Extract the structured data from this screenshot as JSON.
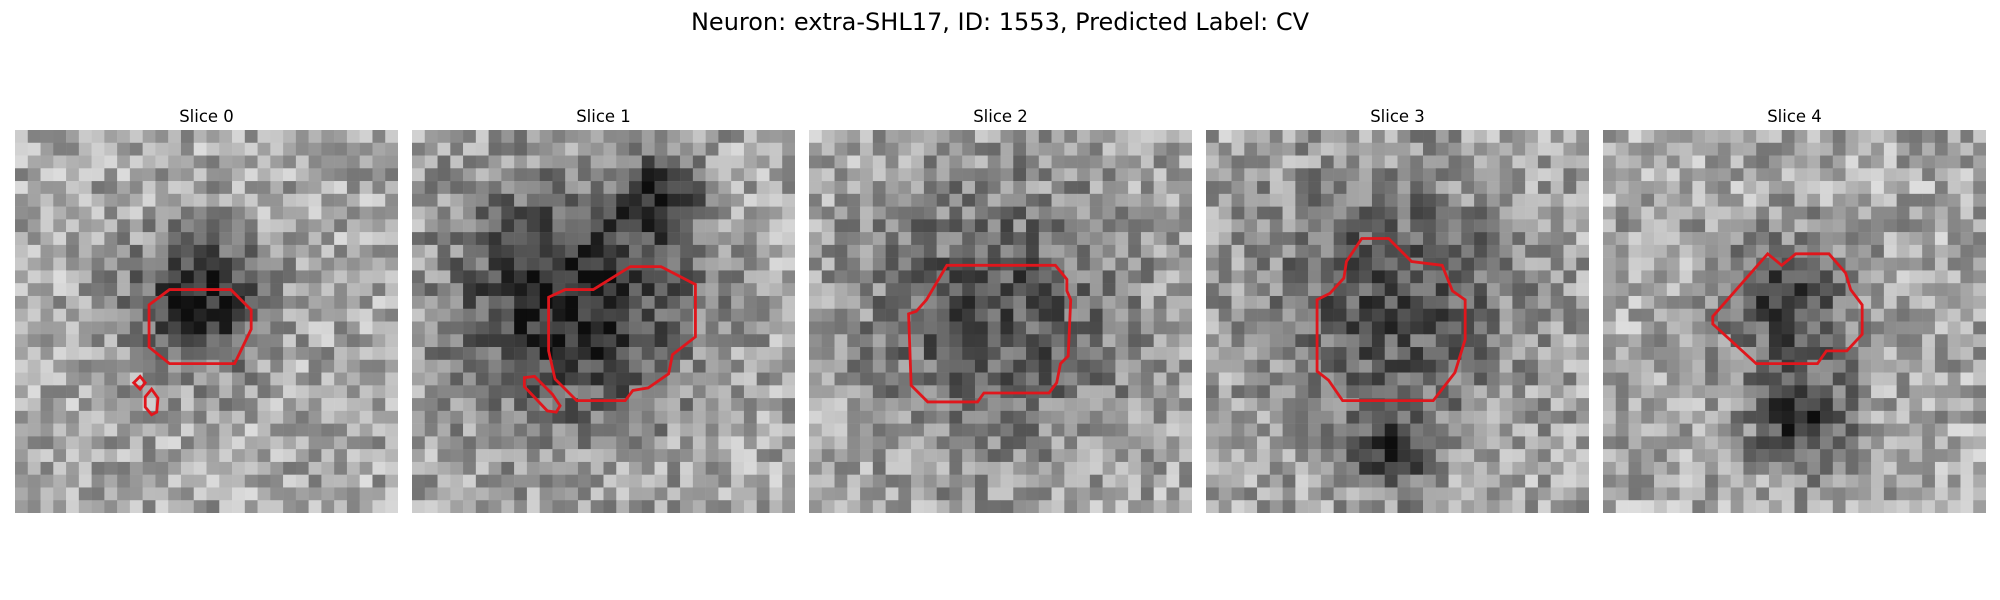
{
  "figure": {
    "title": "Neuron: extra-SHL17, ID: 1553, Predicted Label: CV"
  },
  "panels": [
    {
      "title": "Slice 0",
      "image_description": "grayscale microscopy patch, noisy gray background with a dark blob near the center",
      "dark_spots": [
        {
          "cx": 14,
          "cy": 13,
          "r": 5,
          "strength": 0.55
        }
      ],
      "contour_color": "#e0161c"
    },
    {
      "title": "Slice 1",
      "image_description": "grayscale microscopy patch, dark ring-shaped structure with lighter interior",
      "dark_spots": [
        {
          "cx": 12,
          "cy": 13,
          "r": 9,
          "strength": 0.55
        },
        {
          "cx": 19,
          "cy": 5,
          "r": 3,
          "strength": 0.45
        }
      ],
      "contour_color": "#e0161c"
    },
    {
      "title": "Slice 2",
      "image_description": "grayscale microscopy patch, bright circular region surrounded by a darker ring",
      "dark_spots": [
        {
          "cx": 14,
          "cy": 14,
          "r": 10,
          "strength": 0.35
        }
      ],
      "contour_color": "#e0161c"
    },
    {
      "title": "Slice 3",
      "image_description": "grayscale microscopy patch, light round interior with dark boundary ring",
      "dark_spots": [
        {
          "cx": 14,
          "cy": 13,
          "r": 10,
          "strength": 0.35
        },
        {
          "cx": 14,
          "cy": 25,
          "r": 3,
          "strength": 0.4
        }
      ],
      "contour_color": "#e0161c"
    },
    {
      "title": "Slice 4",
      "image_description": "grayscale microscopy patch, dark region near center with dark band below",
      "dark_spots": [
        {
          "cx": 14,
          "cy": 13,
          "r": 5,
          "strength": 0.4
        },
        {
          "cx": 15,
          "cy": 22,
          "r": 4,
          "strength": 0.45
        }
      ],
      "contour_color": "#e0161c"
    }
  ]
}
